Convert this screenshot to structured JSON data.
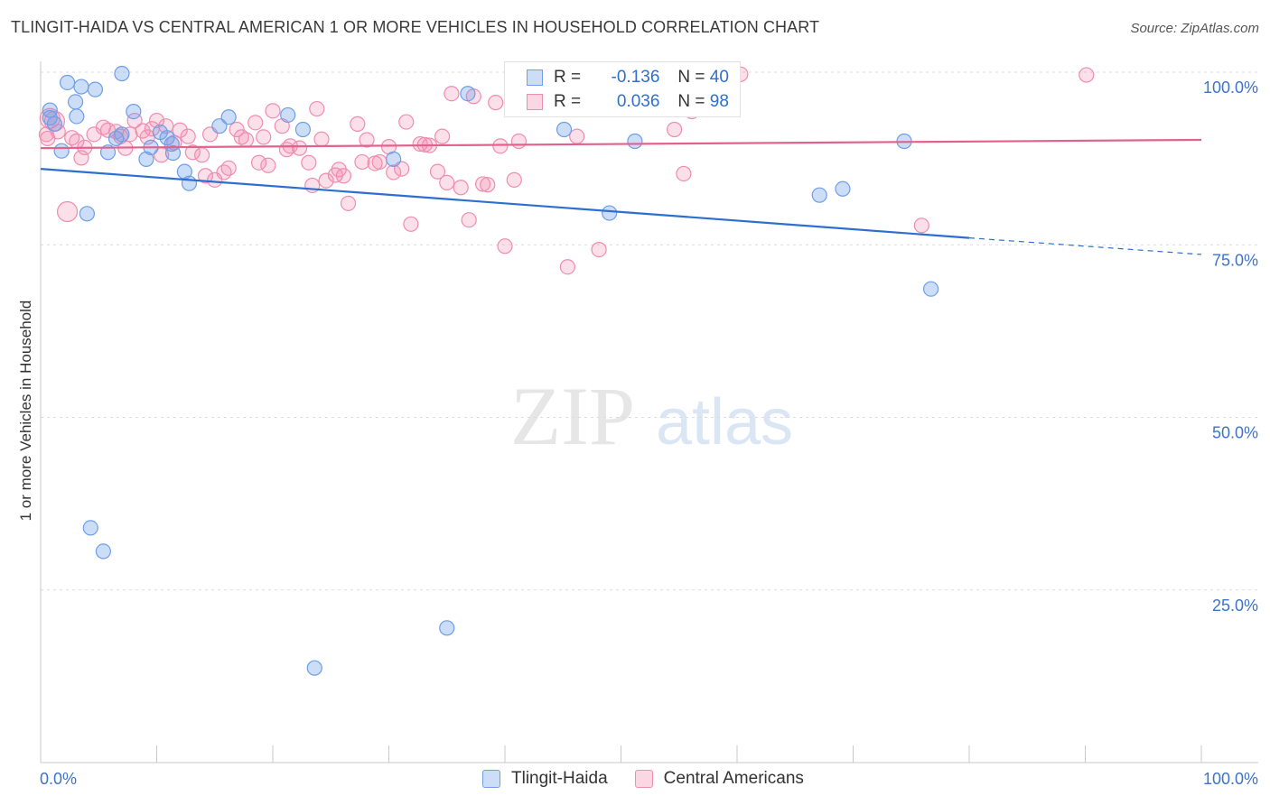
{
  "title": "TLINGIT-HAIDA VS CENTRAL AMERICAN 1 OR MORE VEHICLES IN HOUSEHOLD CORRELATION CHART",
  "source": "Source: ZipAtlas.com",
  "watermark": {
    "zip": "ZIP",
    "atlas": "atlas"
  },
  "legend": {
    "r_label": "R =",
    "n_label": "N =",
    "rows": [
      {
        "r": "-0.136",
        "n": "40",
        "color": "#6e9ee8"
      },
      {
        "r": "0.036",
        "n": "98",
        "color": "#f08cb0"
      }
    ]
  },
  "chart_data": {
    "type": "scatter",
    "xlabel": "",
    "ylabel": "1 or more Vehicles in Household",
    "xlim": [
      0,
      100
    ],
    "ylim": [
      0,
      100
    ],
    "x_tick_labels": [
      "0.0%",
      "100.0%"
    ],
    "y_tick_labels": [
      "100.0%",
      "75.0%",
      "50.0%",
      "25.0%"
    ],
    "y_ticks": [
      100,
      75,
      50,
      25
    ],
    "grid": true,
    "series": [
      {
        "name": "Tlingit-Haida",
        "color": "#6e9ee8",
        "trend": {
          "x0": 0,
          "y0": 86,
          "x1": 80,
          "y1": 76,
          "dash_to": 100,
          "dash_y": 73.6
        },
        "points": [
          [
            0.8,
            93.4
          ],
          [
            0.8,
            94.5
          ],
          [
            1.2,
            92.5
          ],
          [
            1.8,
            88.6
          ],
          [
            2.3,
            98.5
          ],
          [
            3.0,
            95.7
          ],
          [
            3.1,
            93.6
          ],
          [
            3.5,
            97.9
          ],
          [
            4.0,
            79.5
          ],
          [
            4.3,
            34.0
          ],
          [
            4.7,
            97.5
          ],
          [
            5.4,
            30.6
          ],
          [
            5.8,
            88.4
          ],
          [
            6.5,
            90.4
          ],
          [
            7.0,
            91.0
          ],
          [
            7.0,
            99.8
          ],
          [
            8.0,
            94.3
          ],
          [
            9.1,
            87.4
          ],
          [
            10.3,
            91.3
          ],
          [
            10.9,
            90.5
          ],
          [
            11.3,
            89.6
          ],
          [
            11.4,
            88.3
          ],
          [
            12.4,
            85.6
          ],
          [
            12.8,
            83.9
          ],
          [
            15.4,
            92.2
          ],
          [
            16.2,
            93.5
          ],
          [
            21.3,
            93.8
          ],
          [
            22.6,
            91.7
          ],
          [
            23.6,
            13.7
          ],
          [
            30.4,
            87.4
          ],
          [
            35.0,
            19.5
          ],
          [
            36.8,
            96.9
          ],
          [
            45.1,
            91.7
          ],
          [
            49.0,
            79.6
          ],
          [
            51.2,
            90.0
          ],
          [
            67.1,
            82.2
          ],
          [
            69.1,
            83.1
          ],
          [
            74.4,
            90.0
          ],
          [
            76.7,
            68.6
          ],
          [
            9.5,
            89.1
          ]
        ]
      },
      {
        "name": "Central Americans",
        "color": "#f08cb0",
        "trend": {
          "x0": 0,
          "y0": 89,
          "x1": 100,
          "y1": 90.2
        },
        "points": [
          [
            0.5,
            91.0
          ],
          [
            0.6,
            90.4
          ],
          [
            0.8,
            93.3
          ],
          [
            1.2,
            92.9
          ],
          [
            1.5,
            91.4
          ],
          [
            2.3,
            79.8
          ],
          [
            2.7,
            90.5
          ],
          [
            3.1,
            90.0
          ],
          [
            3.5,
            87.6
          ],
          [
            3.8,
            89.1
          ],
          [
            4.6,
            91.0
          ],
          [
            5.4,
            92.0
          ],
          [
            5.8,
            91.6
          ],
          [
            6.5,
            91.4
          ],
          [
            6.9,
            90.7
          ],
          [
            7.3,
            89.0
          ],
          [
            7.7,
            91.0
          ],
          [
            8.1,
            93.0
          ],
          [
            8.8,
            91.5
          ],
          [
            9.2,
            90.6
          ],
          [
            9.6,
            91.8
          ],
          [
            10.0,
            93.0
          ],
          [
            10.4,
            88.0
          ],
          [
            10.8,
            92.2
          ],
          [
            11.5,
            89.8
          ],
          [
            12.0,
            91.6
          ],
          [
            12.7,
            90.7
          ],
          [
            13.1,
            88.4
          ],
          [
            13.9,
            88.0
          ],
          [
            14.2,
            85.0
          ],
          [
            14.6,
            91.0
          ],
          [
            15.0,
            84.4
          ],
          [
            15.8,
            85.5
          ],
          [
            16.2,
            86.1
          ],
          [
            16.9,
            91.7
          ],
          [
            17.3,
            90.6
          ],
          [
            17.7,
            90.2
          ],
          [
            18.5,
            92.7
          ],
          [
            18.8,
            86.9
          ],
          [
            19.2,
            90.6
          ],
          [
            19.6,
            86.5
          ],
          [
            20.0,
            94.4
          ],
          [
            20.8,
            92.2
          ],
          [
            21.2,
            88.8
          ],
          [
            21.5,
            89.3
          ],
          [
            22.3,
            89.0
          ],
          [
            23.1,
            86.9
          ],
          [
            23.4,
            83.6
          ],
          [
            23.8,
            94.7
          ],
          [
            24.2,
            90.3
          ],
          [
            24.6,
            84.3
          ],
          [
            25.4,
            85.1
          ],
          [
            25.7,
            85.9
          ],
          [
            26.1,
            85.0
          ],
          [
            26.5,
            81.0
          ],
          [
            27.3,
            92.5
          ],
          [
            27.7,
            87.0
          ],
          [
            28.1,
            90.2
          ],
          [
            28.8,
            86.8
          ],
          [
            29.2,
            87.0
          ],
          [
            30.0,
            89.2
          ],
          [
            30.4,
            85.5
          ],
          [
            31.1,
            86.0
          ],
          [
            31.5,
            92.8
          ],
          [
            31.9,
            78.0
          ],
          [
            32.7,
            89.6
          ],
          [
            33.1,
            89.5
          ],
          [
            33.5,
            89.4
          ],
          [
            34.2,
            85.6
          ],
          [
            34.6,
            90.7
          ],
          [
            35.0,
            84.0
          ],
          [
            35.4,
            96.9
          ],
          [
            36.2,
            83.3
          ],
          [
            36.9,
            78.6
          ],
          [
            37.3,
            96.5
          ],
          [
            38.1,
            83.8
          ],
          [
            38.5,
            83.7
          ],
          [
            39.2,
            95.6
          ],
          [
            39.6,
            89.3
          ],
          [
            40.0,
            74.8
          ],
          [
            40.8,
            84.4
          ],
          [
            41.2,
            90.0
          ],
          [
            42.0,
            97.5
          ],
          [
            42.3,
            96.8
          ],
          [
            43.5,
            99.8
          ],
          [
            45.4,
            71.8
          ],
          [
            46.2,
            90.7
          ],
          [
            47.3,
            99.4
          ],
          [
            48.1,
            74.3
          ],
          [
            49.6,
            98.4
          ],
          [
            51.5,
            98.8
          ],
          [
            53.4,
            95.0
          ],
          [
            54.6,
            91.7
          ],
          [
            55.4,
            85.3
          ],
          [
            56.1,
            94.3
          ],
          [
            60.3,
            99.7
          ],
          [
            75.9,
            77.8
          ],
          [
            90.1,
            99.6
          ],
          [
            47.8,
            97.0
          ]
        ]
      }
    ]
  }
}
